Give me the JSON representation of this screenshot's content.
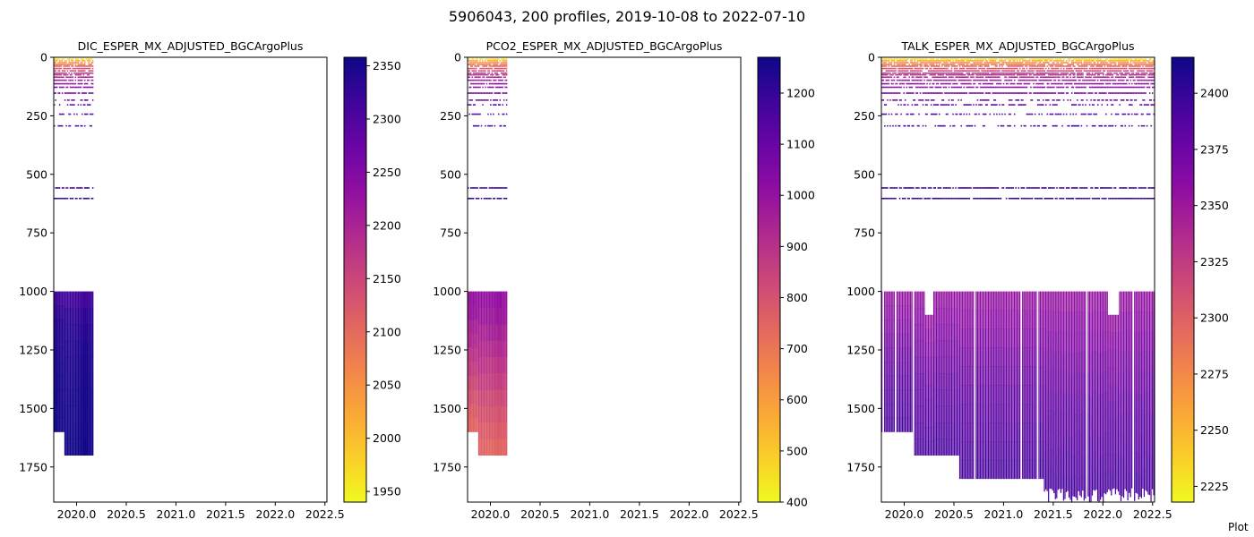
{
  "figure": {
    "title": "5906043, 200 profiles, 2019-10-08 to 2022-07-10",
    "credit": "Plot"
  },
  "chart_data": [
    {
      "type": "heatmap",
      "title": "DIC_ESPER_MX_ADJUSTED_BGCArgoPlus",
      "xlabel": "",
      "ylabel": "",
      "xlim": [
        2019.77,
        2022.52
      ],
      "ylim": [
        1900,
        0
      ],
      "xticks": [
        "2020.0",
        "2020.5",
        "2021.0",
        "2021.5",
        "2022.0",
        "2022.5"
      ],
      "yticks": [
        "0",
        "250",
        "500",
        "750",
        "1000",
        "1250",
        "1500",
        "1750"
      ],
      "colormap": "plasma_r",
      "colorbar": {
        "range": [
          1940,
          2358
        ],
        "ticks": [
          "1950",
          "2000",
          "2050",
          "2100",
          "2150",
          "2200",
          "2250",
          "2300",
          "2350"
        ]
      },
      "data_extent": {
        "time_range": [
          2019.77,
          2020.17
        ],
        "depth_max": 1700
      },
      "deep_values": [
        2315,
        2330,
        2338,
        2342,
        2345,
        2347,
        2349,
        2350,
        2351,
        2352
      ]
    },
    {
      "type": "heatmap",
      "title": "PCO2_ESPER_MX_ADJUSTED_BGCArgoPlus",
      "xlabel": "",
      "ylabel": "",
      "xlim": [
        2019.77,
        2022.52
      ],
      "ylim": [
        1900,
        0
      ],
      "xticks": [
        "2020.0",
        "2020.5",
        "2021.0",
        "2021.5",
        "2022.0",
        "2022.5"
      ],
      "yticks": [
        "0",
        "250",
        "500",
        "750",
        "1000",
        "1250",
        "1500",
        "1750"
      ],
      "colormap": "plasma_r",
      "colorbar": {
        "range": [
          400,
          1270
        ],
        "ticks": [
          "400",
          "500",
          "600",
          "700",
          "800",
          "900",
          "1000",
          "1100",
          "1200"
        ]
      },
      "data_extent": {
        "time_range": [
          2019.77,
          2020.17
        ],
        "depth_max": 1700
      },
      "deep_values": [
        1000,
        980,
        950,
        920,
        890,
        860,
        830,
        800,
        775,
        750
      ]
    },
    {
      "type": "heatmap",
      "title": "TALK_ESPER_MX_ADJUSTED_BGCArgoPlus",
      "xlabel": "",
      "ylabel": "",
      "xlim": [
        2019.77,
        2022.52
      ],
      "ylim": [
        1900,
        0
      ],
      "xticks": [
        "2020.0",
        "2020.5",
        "2021.0",
        "2021.5",
        "2022.0",
        "2022.5"
      ],
      "yticks": [
        "0",
        "250",
        "500",
        "750",
        "1000",
        "1250",
        "1500",
        "1750"
      ],
      "colormap": "plasma_r",
      "colorbar": {
        "range": [
          2218,
          2416
        ],
        "ticks": [
          "2225",
          "2250",
          "2275",
          "2300",
          "2325",
          "2350",
          "2375",
          "2400"
        ]
      },
      "data_extent": {
        "time_range": [
          2019.77,
          2022.52
        ],
        "depth_max": 1900
      },
      "deep_values": [
        2355,
        2360,
        2365,
        2370,
        2375,
        2380,
        2383,
        2386,
        2389,
        2392
      ]
    }
  ]
}
